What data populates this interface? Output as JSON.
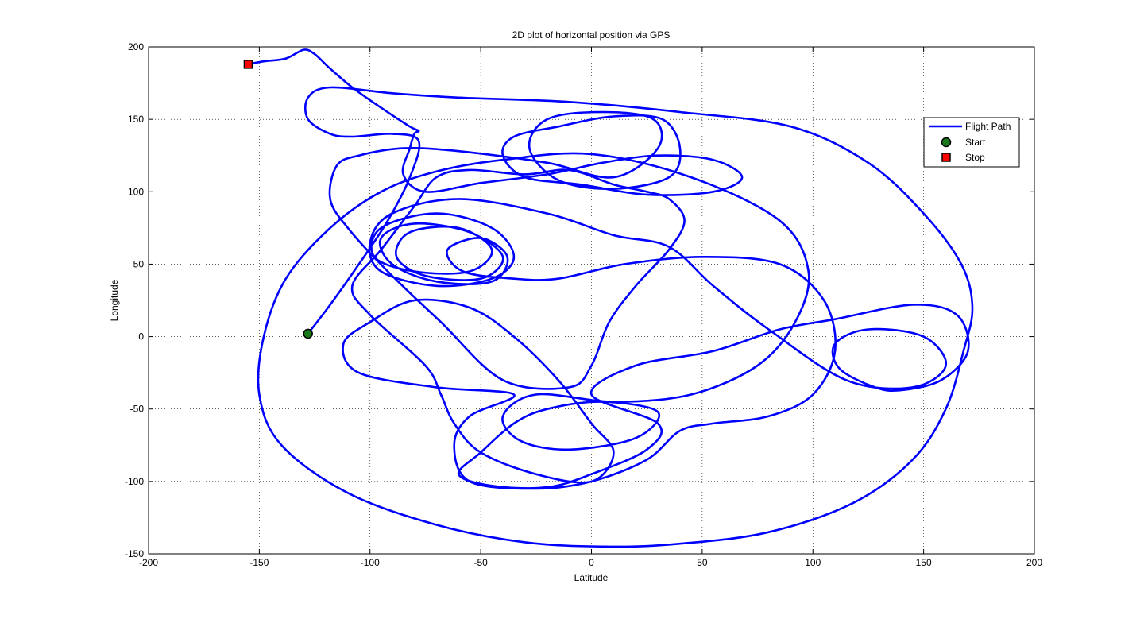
{
  "chart_data": {
    "type": "line",
    "title": "2D plot of horizontal position via GPS",
    "xlabel": "Latitude",
    "ylabel": "Longitude",
    "xlim": [
      -200,
      200
    ],
    "ylim": [
      -150,
      200
    ],
    "xticks": [
      -200,
      -150,
      -100,
      -50,
      0,
      50,
      100,
      150,
      200
    ],
    "yticks": [
      -150,
      -100,
      -50,
      0,
      50,
      100,
      150,
      200
    ],
    "grid": true,
    "legend": {
      "placement": "top-right",
      "entries": [
        "Flight Path",
        "Start",
        "Stop"
      ]
    },
    "colors": {
      "path": "#0000ff",
      "start": "#1a7a1a",
      "stop": "#ff0000"
    },
    "series": [
      {
        "name": "Flight Path",
        "points": [
          [
            -128,
            2
          ],
          [
            -118,
            22
          ],
          [
            -105,
            50
          ],
          [
            -92,
            80
          ],
          [
            -82,
            110
          ],
          [
            -78,
            135
          ],
          [
            -90,
            140
          ],
          [
            -108,
            138
          ],
          [
            -118,
            140
          ],
          [
            -128,
            150
          ],
          [
            -128,
            165
          ],
          [
            -118,
            172
          ],
          [
            -90,
            168
          ],
          [
            -60,
            165
          ],
          [
            -10,
            162
          ],
          [
            40,
            155
          ],
          [
            90,
            145
          ],
          [
            125,
            120
          ],
          [
            150,
            85
          ],
          [
            167,
            50
          ],
          [
            172,
            20
          ],
          [
            168,
            -10
          ],
          [
            160,
            -50
          ],
          [
            145,
            -85
          ],
          [
            118,
            -115
          ],
          [
            80,
            -135
          ],
          [
            40,
            -143
          ],
          [
            8,
            -145
          ],
          [
            -30,
            -142
          ],
          [
            -70,
            -130
          ],
          [
            -110,
            -108
          ],
          [
            -140,
            -75
          ],
          [
            -150,
            -40
          ],
          [
            -148,
            0
          ],
          [
            -138,
            40
          ],
          [
            -118,
            75
          ],
          [
            -95,
            100
          ],
          [
            -70,
            114
          ],
          [
            -40,
            122
          ],
          [
            0,
            126
          ],
          [
            45,
            110
          ],
          [
            85,
            80
          ],
          [
            98,
            45
          ],
          [
            92,
            10
          ],
          [
            75,
            -20
          ],
          [
            45,
            -40
          ],
          [
            10,
            -45
          ],
          [
            -25,
            -40
          ],
          [
            -40,
            -55
          ],
          [
            -32,
            -72
          ],
          [
            -10,
            -78
          ],
          [
            20,
            -70
          ],
          [
            30,
            -52
          ],
          [
            5,
            -45
          ],
          [
            -20,
            -50
          ],
          [
            -35,
            -60
          ],
          [
            -50,
            -80
          ],
          [
            -60,
            -95
          ],
          [
            -45,
            -103
          ],
          [
            -20,
            -104
          ],
          [
            0,
            -95
          ],
          [
            25,
            -78
          ],
          [
            30,
            -60
          ],
          [
            0,
            -40
          ],
          [
            20,
            -20
          ],
          [
            55,
            -10
          ],
          [
            85,
            5
          ],
          [
            110,
            12
          ],
          [
            145,
            22
          ],
          [
            165,
            15
          ],
          [
            170,
            -10
          ],
          [
            158,
            -30
          ],
          [
            140,
            -37
          ],
          [
            128,
            -35
          ],
          [
            112,
            -22
          ],
          [
            110,
            -5
          ],
          [
            125,
            5
          ],
          [
            150,
            0
          ],
          [
            160,
            -20
          ],
          [
            145,
            -35
          ],
          [
            115,
            -30
          ],
          [
            80,
            5
          ],
          [
            55,
            35
          ],
          [
            35,
            62
          ],
          [
            10,
            70
          ],
          [
            -20,
            85
          ],
          [
            -60,
            95
          ],
          [
            -90,
            85
          ],
          [
            -100,
            65
          ],
          [
            -95,
            45
          ],
          [
            -70,
            35
          ],
          [
            -45,
            40
          ],
          [
            -35,
            55
          ],
          [
            -45,
            75
          ],
          [
            -70,
            85
          ],
          [
            -95,
            75
          ],
          [
            -98,
            55
          ],
          [
            -80,
            45
          ],
          [
            -55,
            45
          ],
          [
            -45,
            60
          ],
          [
            -60,
            75
          ],
          [
            -82,
            72
          ],
          [
            -88,
            55
          ],
          [
            -75,
            42
          ],
          [
            -50,
            40
          ],
          [
            -40,
            55
          ],
          [
            -55,
            72
          ],
          [
            -80,
            78
          ],
          [
            -95,
            68
          ],
          [
            -90,
            50
          ],
          [
            -70,
            38
          ],
          [
            -45,
            38
          ],
          [
            -38,
            55
          ],
          [
            -50,
            68
          ],
          [
            -65,
            60
          ],
          [
            -58,
            45
          ],
          [
            -35,
            40
          ],
          [
            -15,
            40
          ],
          [
            15,
            50
          ],
          [
            50,
            55
          ],
          [
            85,
            50
          ],
          [
            105,
            25
          ],
          [
            110,
            -10
          ],
          [
            100,
            -40
          ],
          [
            80,
            -55
          ],
          [
            55,
            -60
          ],
          [
            40,
            -65
          ],
          [
            25,
            -85
          ],
          [
            0,
            -100
          ],
          [
            -25,
            -105
          ],
          [
            -55,
            -100
          ],
          [
            -62,
            -75
          ],
          [
            -55,
            -55
          ],
          [
            -35,
            -40
          ],
          [
            -70,
            -35
          ],
          [
            -105,
            -25
          ],
          [
            -112,
            -5
          ],
          [
            -100,
            10
          ],
          [
            -80,
            25
          ],
          [
            -55,
            20
          ],
          [
            -35,
            0
          ],
          [
            -15,
            -30
          ],
          [
            0,
            -60
          ],
          [
            10,
            -80
          ],
          [
            0,
            -100
          ],
          [
            -25,
            -95
          ],
          [
            -50,
            -80
          ],
          [
            -62,
            -60
          ],
          [
            -68,
            -40
          ],
          [
            -75,
            -20
          ],
          [
            -100,
            15
          ],
          [
            -108,
            35
          ],
          [
            -95,
            60
          ],
          [
            -80,
            90
          ],
          [
            -70,
            110
          ],
          [
            -55,
            115
          ],
          [
            -30,
            112
          ],
          [
            -10,
            115
          ],
          [
            10,
            105
          ],
          [
            25,
            100
          ],
          [
            35,
            95
          ],
          [
            42,
            80
          ],
          [
            35,
            60
          ],
          [
            20,
            35
          ],
          [
            8,
            10
          ],
          [
            0,
            -20
          ],
          [
            -10,
            -35
          ],
          [
            -40,
            -30
          ],
          [
            -68,
            10
          ],
          [
            -92,
            45
          ],
          [
            -110,
            75
          ],
          [
            -118,
            95
          ],
          [
            -115,
            118
          ],
          [
            -105,
            125
          ],
          [
            -85,
            130
          ],
          [
            -60,
            128
          ],
          [
            -20,
            120
          ],
          [
            10,
            110
          ],
          [
            30,
            130
          ],
          [
            28,
            150
          ],
          [
            5,
            155
          ],
          [
            -20,
            150
          ],
          [
            -28,
            130
          ],
          [
            -15,
            108
          ],
          [
            10,
            102
          ],
          [
            35,
            110
          ],
          [
            40,
            130
          ],
          [
            32,
            150
          ],
          [
            10,
            152
          ],
          [
            -15,
            145
          ],
          [
            -35,
            138
          ],
          [
            -40,
            125
          ],
          [
            -30,
            110
          ],
          [
            -5,
            105
          ],
          [
            25,
            98
          ],
          [
            55,
            100
          ],
          [
            68,
            110
          ],
          [
            55,
            122
          ],
          [
            30,
            125
          ],
          [
            5,
            120
          ],
          [
            -20,
            112
          ],
          [
            -50,
            106
          ],
          [
            -75,
            100
          ],
          [
            -85,
            112
          ],
          [
            -82,
            130
          ],
          [
            -80,
            140
          ],
          [
            -78,
            142
          ],
          [
            -82,
            145
          ],
          [
            -95,
            158
          ],
          [
            -108,
            172
          ],
          [
            -118,
            185
          ],
          [
            -125,
            195
          ],
          [
            -130,
            198
          ],
          [
            -138,
            192
          ],
          [
            -148,
            190
          ],
          [
            -155,
            188
          ]
        ]
      }
    ],
    "markers": [
      {
        "name": "Start",
        "shape": "circle",
        "x": -128,
        "y": 2
      },
      {
        "name": "Stop",
        "shape": "square",
        "x": -155,
        "y": 188
      }
    ]
  }
}
